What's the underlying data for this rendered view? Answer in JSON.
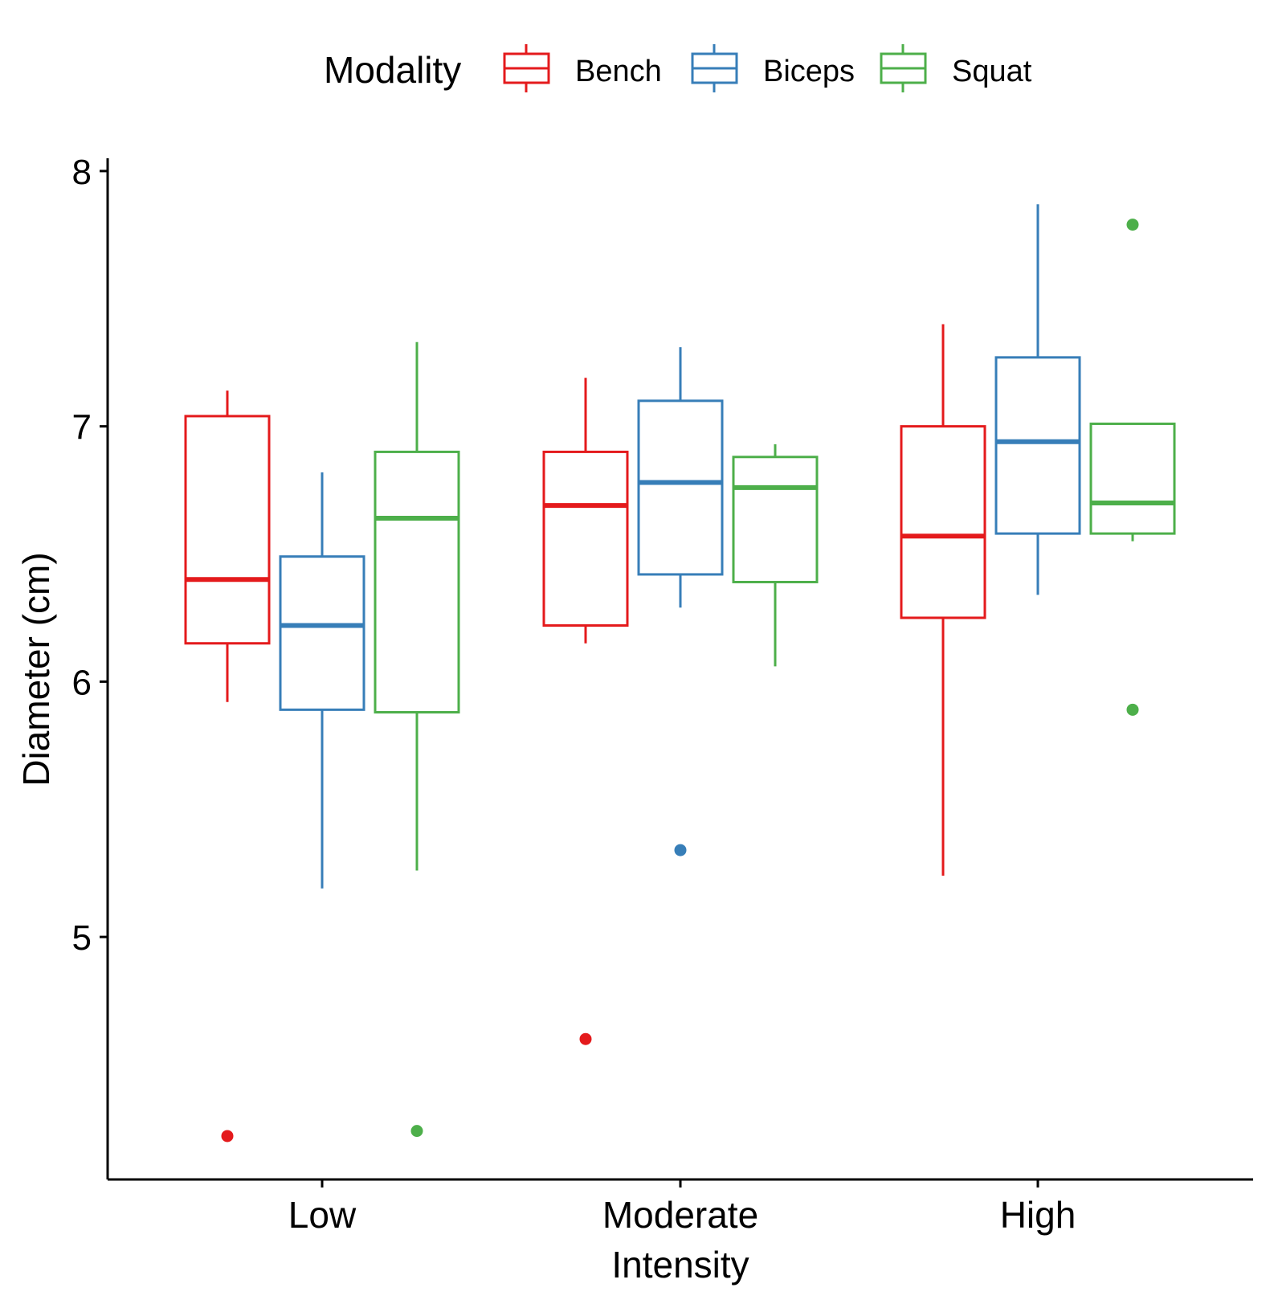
{
  "chart_data": {
    "type": "boxplot",
    "xlabel": "Intensity",
    "ylabel": "Diameter (cm)",
    "ylim": [
      4.05,
      8.05
    ],
    "yticks": [
      5,
      6,
      7,
      8
    ],
    "categories": [
      "Low",
      "Moderate",
      "High"
    ],
    "legend": {
      "title": "Modality",
      "position": "top"
    },
    "grid": false,
    "series": [
      {
        "name": "Bench",
        "color": "#E41A1C",
        "boxes": [
          {
            "category": "Low",
            "whisker_low": 5.92,
            "q1": 6.15,
            "median": 6.4,
            "q3": 7.04,
            "whisker_high": 7.14,
            "outliers": [
              4.22
            ]
          },
          {
            "category": "Moderate",
            "whisker_low": 6.15,
            "q1": 6.22,
            "median": 6.69,
            "q3": 6.9,
            "whisker_high": 7.19,
            "outliers": [
              4.6
            ]
          },
          {
            "category": "High",
            "whisker_low": 5.24,
            "q1": 6.25,
            "median": 6.57,
            "q3": 7.0,
            "whisker_high": 7.4,
            "outliers": []
          }
        ]
      },
      {
        "name": "Biceps",
        "color": "#377EB8",
        "boxes": [
          {
            "category": "Low",
            "whisker_low": 5.19,
            "q1": 5.89,
            "median": 6.22,
            "q3": 6.49,
            "whisker_high": 6.82,
            "outliers": []
          },
          {
            "category": "Moderate",
            "whisker_low": 6.29,
            "q1": 6.42,
            "median": 6.78,
            "q3": 7.1,
            "whisker_high": 7.31,
            "outliers": [
              5.34
            ]
          },
          {
            "category": "High",
            "whisker_low": 6.34,
            "q1": 6.58,
            "median": 6.94,
            "q3": 7.27,
            "whisker_high": 7.87,
            "outliers": []
          }
        ]
      },
      {
        "name": "Squat",
        "color": "#4DAF4A",
        "boxes": [
          {
            "category": "Low",
            "whisker_low": 5.26,
            "q1": 5.88,
            "median": 6.64,
            "q3": 6.9,
            "whisker_high": 7.33,
            "outliers": [
              4.24
            ]
          },
          {
            "category": "Moderate",
            "whisker_low": 6.06,
            "q1": 6.39,
            "median": 6.76,
            "q3": 6.88,
            "whisker_high": 6.93,
            "outliers": []
          },
          {
            "category": "High",
            "whisker_low": 6.55,
            "q1": 6.58,
            "median": 6.7,
            "q3": 7.01,
            "whisker_high": 7.01,
            "outliers": [
              7.79,
              5.89
            ]
          }
        ]
      }
    ]
  }
}
